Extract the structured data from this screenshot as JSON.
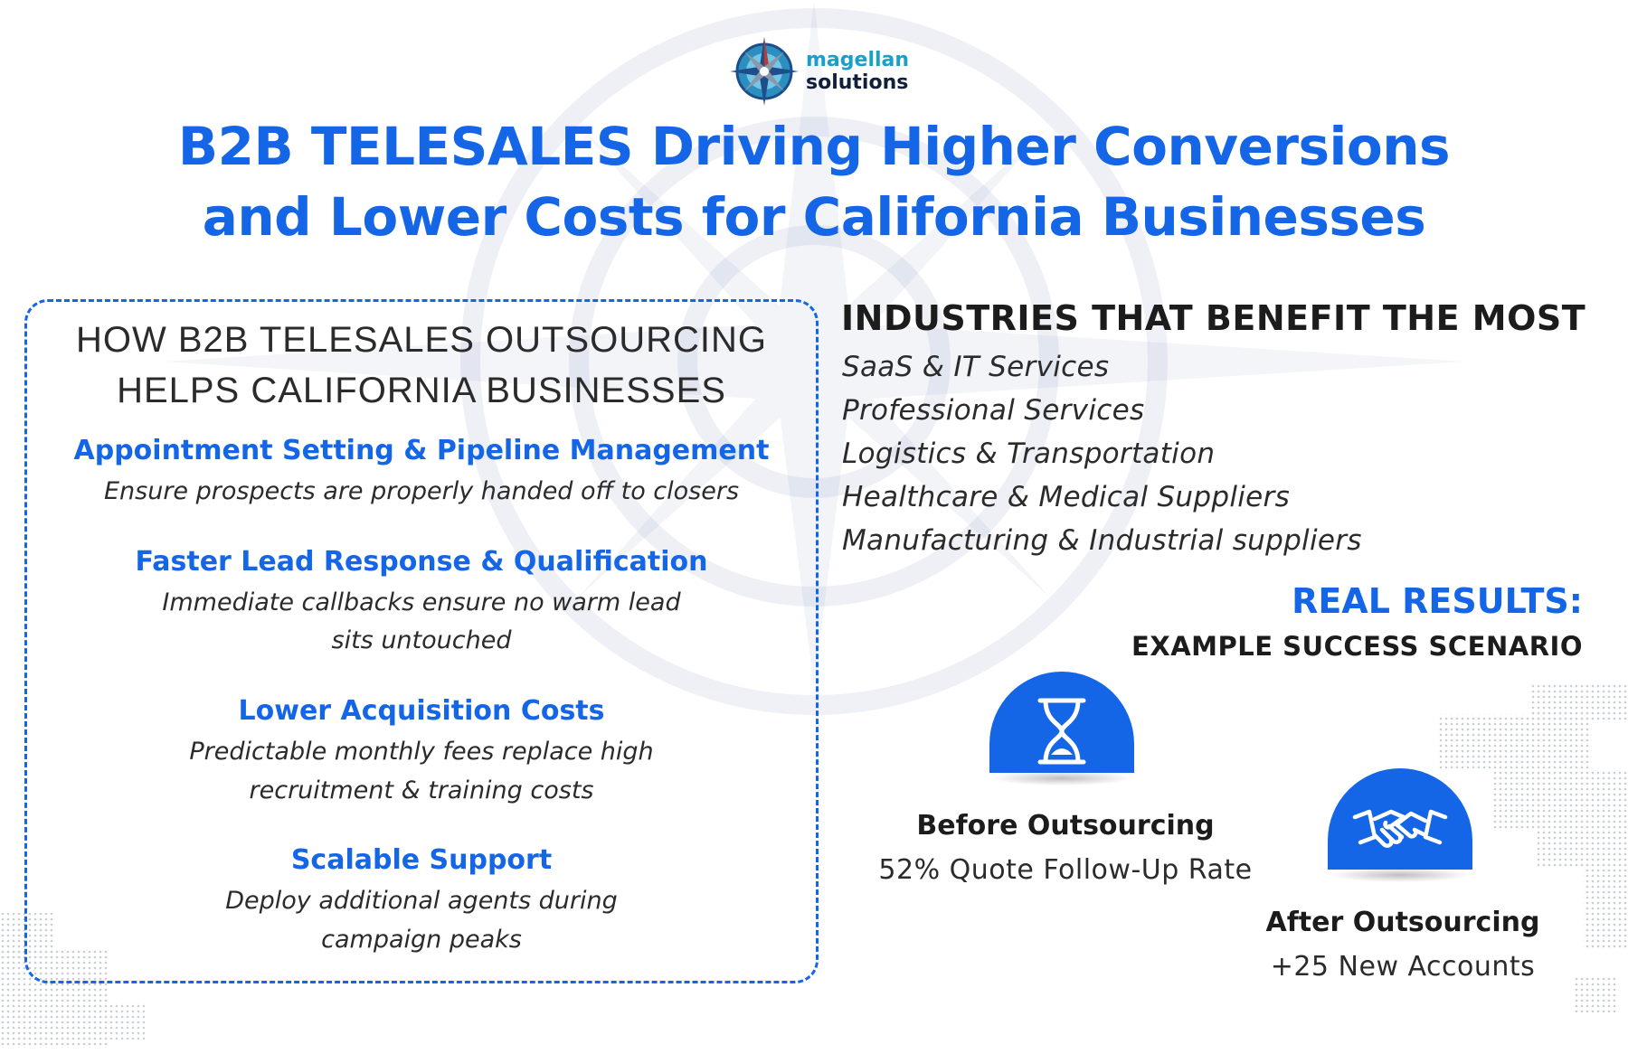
{
  "logo": {
    "line1": "magellan",
    "line2": "solutions",
    "icon": "compass-rose-icon"
  },
  "title": {
    "line1": "B2B TELESALES Driving Higher Conversions",
    "line2": "and Lower Costs for California Businesses"
  },
  "benefits": {
    "title_line1": "HOW B2B TELESALES OUTSOURCING",
    "title_line2": "HELPS CALIFORNIA BUSINESSES",
    "items": [
      {
        "heading": "Appointment Setting & Pipeline Management",
        "desc": [
          "Ensure prospects are properly handed off to closers"
        ]
      },
      {
        "heading": "Faster Lead Response & Qualification",
        "desc": [
          "Immediate callbacks ensure no warm lead",
          "sits untouched"
        ]
      },
      {
        "heading": "Lower Acquisition Costs",
        "desc": [
          "Predictable monthly fees replace high",
          "recruitment & training costs"
        ]
      },
      {
        "heading": "Scalable Support",
        "desc": [
          "Deploy additional agents during",
          "campaign peaks"
        ]
      }
    ]
  },
  "industries": {
    "title": "INDUSTRIES THAT BENEFIT THE MOST",
    "items": [
      "SaaS & IT Services",
      "Professional Services",
      "Logistics & Transportation",
      "Healthcare & Medical Suppliers",
      "Manufacturing & Industrial suppliers"
    ]
  },
  "results": {
    "title": "REAL RESULTS:",
    "subtitle": "EXAMPLE SUCCESS SCENARIO",
    "before": {
      "label": "Before Outsourcing",
      "value": "52% Quote Follow-Up Rate",
      "icon": "hourglass-icon"
    },
    "after": {
      "label": "After Outsourcing",
      "value": "+25 New Accounts",
      "icon": "handshake-icon"
    }
  },
  "colors": {
    "accent_blue": "#1466e6",
    "text_dark": "#1c1c1c",
    "logo_teal": "#1aa0c8",
    "badge_blue": "#1466e6"
  }
}
